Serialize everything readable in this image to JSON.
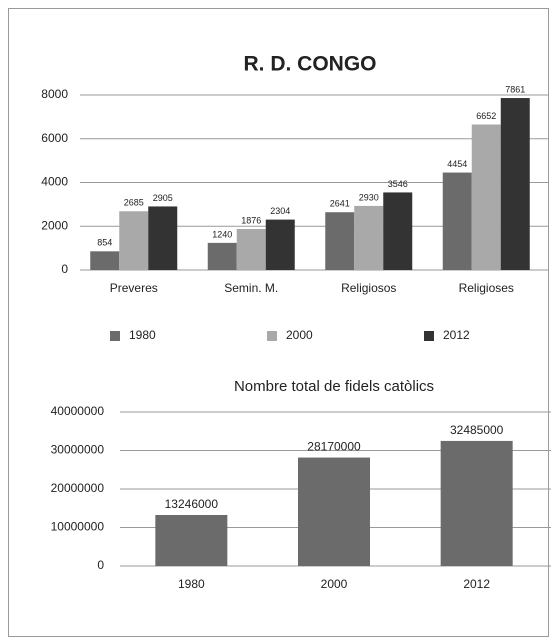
{
  "chart_data": [
    {
      "type": "bar",
      "title": "R. D. CONGO",
      "categories": [
        "Preveres",
        "Semin. M.",
        "Religiosos",
        "Religioses"
      ],
      "series": [
        {
          "name": "1980",
          "color": "#6b6b6b",
          "values": [
            854,
            1240,
            2641,
            4454
          ]
        },
        {
          "name": "2000",
          "color": "#a9a9a9",
          "values": [
            2685,
            1876,
            2930,
            6652
          ]
        },
        {
          "name": "2012",
          "color": "#333333",
          "values": [
            2905,
            2304,
            3546,
            7861
          ]
        }
      ],
      "ylim": [
        0,
        8000
      ],
      "yticks": [
        0,
        2000,
        4000,
        6000,
        8000
      ],
      "grid": true,
      "legend": "bottom"
    },
    {
      "type": "bar",
      "title": "Nombre total de fidels catòlics",
      "categories": [
        "1980",
        "2000",
        "2012"
      ],
      "values": [
        13246000,
        28170000,
        32485000
      ],
      "color": "#6b6b6b",
      "ylim": [
        0,
        40000000
      ],
      "yticks": [
        0,
        10000000,
        20000000,
        30000000,
        40000000
      ],
      "grid": true
    }
  ]
}
